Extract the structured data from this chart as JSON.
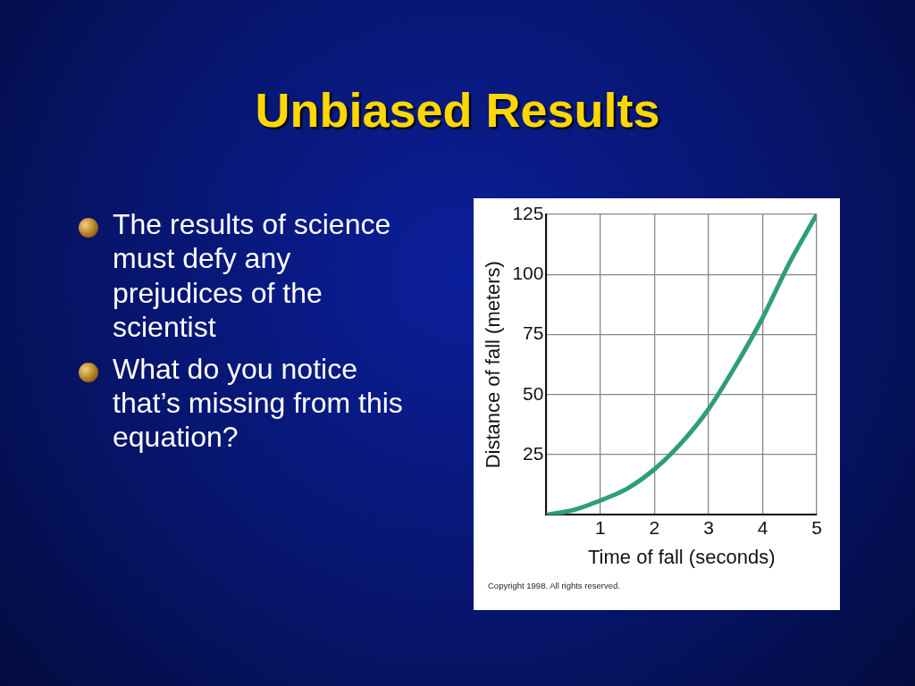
{
  "chart_data": {
    "type": "line",
    "title": "Unbiased Results",
    "xlabel": "Time of fall (seconds)",
    "ylabel": "Distance of fall (meters)",
    "x": [
      0,
      0.5,
      1,
      1.5,
      2,
      2.5,
      3,
      3.5,
      4,
      4.5,
      5
    ],
    "series": [
      {
        "color": "#2e9e78",
        "values": [
          0,
          2,
          6,
          11,
          19,
          30,
          44,
          62,
          82,
          105,
          125
        ]
      }
    ],
    "xlim": [
      0,
      5
    ],
    "xticks": [
      {
        "value": 0,
        "label": null
      },
      1,
      2,
      3,
      4,
      5
    ],
    "ylim": [
      0,
      125
    ],
    "yticks": [
      {
        "value": 0,
        "label": null
      },
      25,
      50,
      75,
      100,
      125
    ],
    "grid": true,
    "legend": false,
    "marker": "none",
    "line_style": "solid",
    "annotations": [
      "The results of science must defy any prejudices of the scientist",
      "What do you notice that’s missing from this equation?",
      "Copyright 1998. All rights reserved."
    ]
  }
}
